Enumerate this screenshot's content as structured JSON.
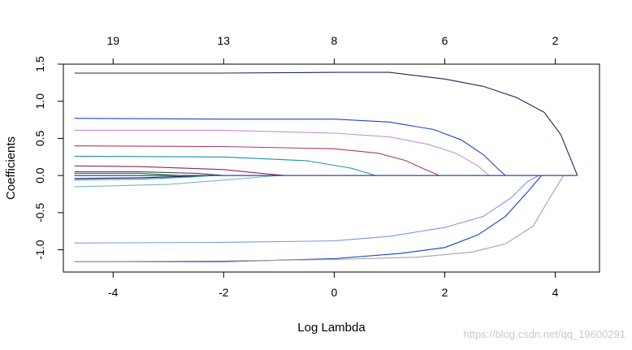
{
  "chart_data": {
    "type": "line",
    "xlabel": "Log Lambda",
    "ylabel": "Coefficients",
    "xlim": [
      -4.9,
      4.8
    ],
    "ylim": [
      -1.3,
      1.5
    ],
    "x_ticks": [
      -4,
      -2,
      0,
      2,
      4
    ],
    "y_ticks": [
      -1.0,
      -0.5,
      0.0,
      0.5,
      1.0,
      1.5
    ],
    "top_axis": {
      "ticks": [
        -4,
        -2,
        0,
        2,
        4
      ],
      "labels": [
        "19",
        "13",
        "8",
        "6",
        "2"
      ]
    },
    "zero_line": {
      "y": 0,
      "color": "#2f3fb0"
    },
    "grid": false,
    "series": [
      {
        "color": "#1a2a55",
        "x": [
          -4.7,
          -2,
          0,
          1,
          2,
          2.7,
          3.3,
          3.8,
          4.1,
          4.4
        ],
        "y": [
          1.38,
          1.38,
          1.39,
          1.39,
          1.3,
          1.2,
          1.05,
          0.85,
          0.55,
          0.0
        ]
      },
      {
        "color": "#2244cc",
        "x": [
          -4.7,
          -2,
          0,
          1,
          1.8,
          2.3,
          2.7,
          2.95,
          3.1
        ],
        "y": [
          0.77,
          0.76,
          0.76,
          0.72,
          0.62,
          0.48,
          0.28,
          0.1,
          0.0
        ]
      },
      {
        "color": "#c78fd6",
        "x": [
          -4.7,
          -2,
          0,
          1,
          1.7,
          2.2,
          2.6,
          2.8
        ],
        "y": [
          0.61,
          0.61,
          0.57,
          0.52,
          0.42,
          0.3,
          0.13,
          0.0
        ]
      },
      {
        "color": "#b03a6a",
        "x": [
          -4.7,
          -2,
          0,
          0.8,
          1.3,
          1.65,
          1.9
        ],
        "y": [
          0.4,
          0.39,
          0.36,
          0.3,
          0.2,
          0.08,
          0.0
        ]
      },
      {
        "color": "#1f8fb0",
        "x": [
          -4.7,
          -2,
          -0.5,
          0.3,
          0.75
        ],
        "y": [
          0.26,
          0.25,
          0.2,
          0.1,
          0.0
        ]
      },
      {
        "color": "#8b2a5a",
        "x": [
          -4.7,
          -3.5,
          -2,
          -1.2,
          -0.9
        ],
        "y": [
          0.13,
          0.12,
          0.08,
          0.02,
          0.0
        ]
      },
      {
        "color": "#4a4a4a",
        "x": [
          -4.7,
          -3.5,
          -2.5,
          -2.0
        ],
        "y": [
          0.05,
          0.05,
          0.03,
          0.0
        ]
      },
      {
        "color": "#228b3a",
        "x": [
          -4.7,
          -3.5,
          -2.8
        ],
        "y": [
          0.03,
          0.03,
          0.0
        ]
      },
      {
        "color": "#0a1f4f",
        "x": [
          -4.7,
          -3.5,
          -2.2
        ],
        "y": [
          -0.04,
          -0.03,
          0.0
        ]
      },
      {
        "color": "#2fa0a0",
        "x": [
          -4.7,
          -3.5,
          -2.6,
          -2.2
        ],
        "y": [
          -0.06,
          -0.05,
          -0.02,
          0.0
        ]
      },
      {
        "color": "#7cb7bd",
        "x": [
          -4.7,
          -3.0,
          -1.8,
          -1.0
        ],
        "y": [
          -0.15,
          -0.12,
          -0.05,
          0.0
        ]
      },
      {
        "color": "#7a9ae0",
        "x": [
          -4.7,
          -2,
          0,
          1,
          2,
          2.7,
          3.2,
          3.5,
          3.7
        ],
        "y": [
          -0.91,
          -0.9,
          -0.88,
          -0.82,
          -0.7,
          -0.55,
          -0.3,
          -0.08,
          0.0
        ]
      },
      {
        "color": "#1a3ad0",
        "x": [
          -4.7,
          -2,
          0,
          1.2,
          2,
          2.6,
          3.1,
          3.5,
          3.75
        ],
        "y": [
          -1.16,
          -1.16,
          -1.12,
          -1.05,
          -0.97,
          -0.8,
          -0.55,
          -0.22,
          0.0
        ]
      },
      {
        "color": "#a3a3a3",
        "x": [
          -4.7,
          -2,
          0,
          1.5,
          2.5,
          3.1,
          3.6,
          3.9,
          4.15
        ],
        "y": [
          -1.16,
          -1.15,
          -1.13,
          -1.1,
          -1.03,
          -0.92,
          -0.68,
          -0.3,
          0.0
        ]
      }
    ]
  },
  "watermark": "https://blog.csdn.net/qq_19600291"
}
